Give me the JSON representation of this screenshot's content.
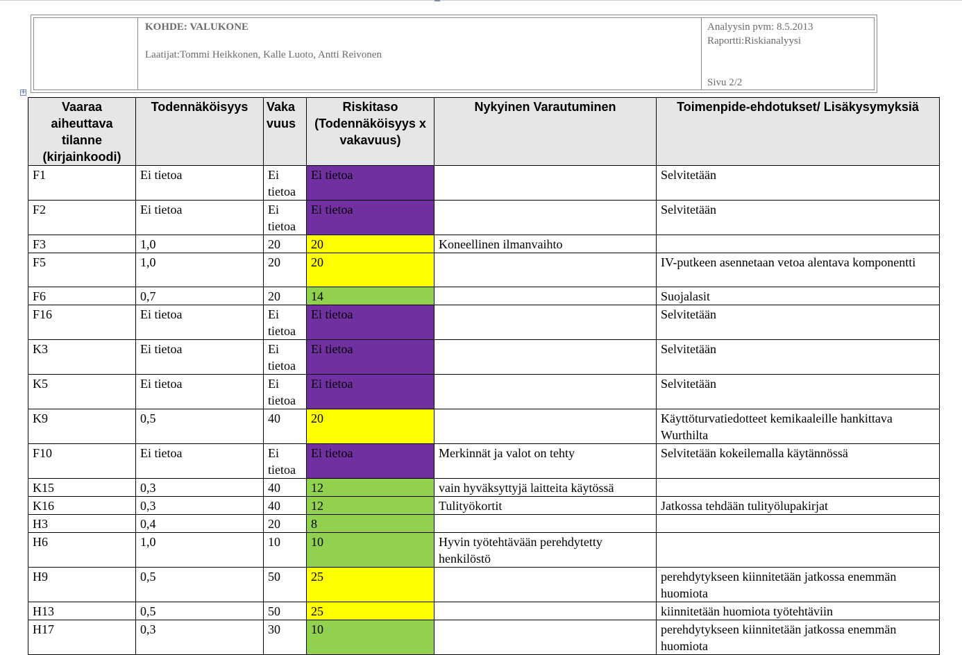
{
  "header": {
    "kohde": "KOHDE:  VALUKONE",
    "laatijat": "Laatijat:Tommi Heikkonen, Kalle Luoto, Antti Reivonen",
    "analyysin_pvm": "Analyysin pvm: 8.5.2013",
    "raportti": "Raportti:Riskianalyysi",
    "sivu": "Sivu  2/2"
  },
  "colors": {
    "ei_tietoa": "#7030a0",
    "keskitaso": "#ffff00",
    "matala": "#92d050",
    "header_bg": "#e6e6e6"
  },
  "table": {
    "headers": [
      "Vaaraa aiheuttava tilanne (kirjainkoodi)",
      "Todennäköisyys",
      "Vaka vuus",
      "Riskitaso (Todennäköisyys x vakavuus)",
      "Nykyinen Varautuminen",
      "Toimenpide-ehdotukset/ Lisäkysymyksiä"
    ],
    "rows": [
      {
        "code": "F1",
        "prob": "Ei tietoa",
        "sev": "Ei tietoa",
        "risk": "Ei tietoa",
        "level": "none",
        "current": "",
        "actions": "Selvitetään"
      },
      {
        "code": "F2",
        "prob": "Ei tietoa",
        "sev": "Ei tietoa",
        "risk": "Ei tietoa",
        "level": "none",
        "current": "",
        "actions": "Selvitetään"
      },
      {
        "code": "F3",
        "prob": "1,0",
        "sev": "20",
        "risk": "20",
        "level": "mid",
        "current": "Koneellinen ilmanvaihto",
        "actions": ""
      },
      {
        "code": "F5",
        "prob": "1,0",
        "sev": "20",
        "risk": "20",
        "level": "mid",
        "current": "",
        "actions": "IV-putkeen asennetaan vetoa alentava komponentti"
      },
      {
        "code": "F6",
        "prob": "0,7",
        "sev": "20",
        "risk": "14",
        "level": "low",
        "current": "",
        "actions": "Suojalasit"
      },
      {
        "code": "F16",
        "prob": "Ei tietoa",
        "sev": "Ei tietoa",
        "risk": "Ei tietoa",
        "level": "none",
        "current": "",
        "actions": "Selvitetään"
      },
      {
        "code": "K3",
        "prob": "Ei tietoa",
        "sev": "Ei tietoa",
        "risk": "Ei tietoa",
        "level": "none",
        "current": "",
        "actions": "Selvitetään"
      },
      {
        "code": "K5",
        "prob": "Ei tietoa",
        "sev": "Ei tietoa",
        "risk": "Ei tietoa",
        "level": "none",
        "current": "",
        "actions": "Selvitetään"
      },
      {
        "code": "K9",
        "prob": "0,5",
        "sev": "40",
        "risk": "20",
        "level": "mid",
        "current": "",
        "actions": "Käyttöturvatiedotteet kemikaaleille hankittava Wurthilta"
      },
      {
        "code": "F10",
        "prob": "Ei tietoa",
        "sev": "Ei tietoa",
        "risk": "Ei tietoa",
        "level": "none",
        "current": "Merkinnät ja valot on tehty",
        "actions": "Selvitetään  kokeilemalla käytännössä"
      },
      {
        "code": "K15",
        "prob": "0,3",
        "sev": "40",
        "risk": "12",
        "level": "low",
        "current": "vain hyväksyttyjä laitteita käytössä",
        "actions": ""
      },
      {
        "code": "K16",
        "prob": "0,3",
        "sev": "40",
        "risk": "12",
        "level": "low",
        "current": "Tulityökortit",
        "actions": "Jatkossa tehdään tulityölupakirjat"
      },
      {
        "code": "H3",
        "prob": "0,4",
        "sev": "20",
        "risk": "8",
        "level": "low",
        "current": "",
        "actions": ""
      },
      {
        "code": "H6",
        "prob": "1,0",
        "sev": "10",
        "risk": "10",
        "level": "low",
        "current": "Hyvin työtehtävään perehdytetty henkilöstö",
        "actions": ""
      },
      {
        "code": "H9",
        "prob": "0,5",
        "sev": "50",
        "risk": "25",
        "level": "mid",
        "current": "",
        "actions": "perehdytykseen kiinnitetään jatkossa enemmän huomiota"
      },
      {
        "code": "H13",
        "prob": "0,5",
        "sev": "50",
        "risk": "25",
        "level": "mid",
        "current": "",
        "actions": "kiinnitetään huomiota työtehtäviin"
      },
      {
        "code": "H17",
        "prob": "0,3",
        "sev": "30",
        "risk": "10",
        "level": "low",
        "current": "",
        "actions": "perehdytykseen kiinnitetään jatkossa enemmän huomiota"
      }
    ]
  }
}
